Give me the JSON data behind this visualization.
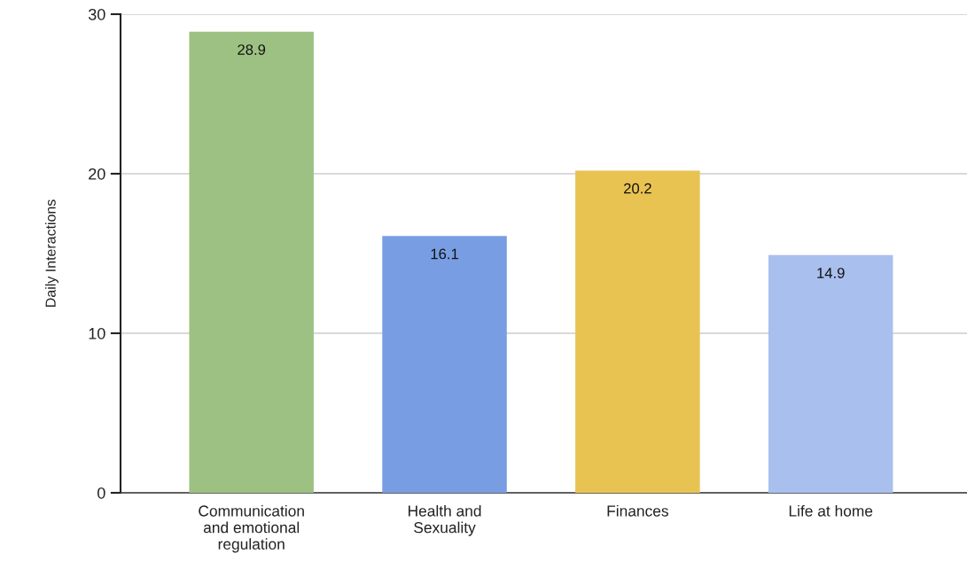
{
  "chart_data": {
    "type": "bar",
    "ylabel": "Daily Interactions",
    "categories": [
      "Communication\nand emotional\nregulation",
      "Health and\nSexuality",
      "Finances",
      "Life at home"
    ],
    "values": [
      28.9,
      16.1,
      20.2,
      14.9
    ],
    "colors": [
      "#9dc183",
      "#789de3",
      "#e8c352",
      "#a9bfee"
    ],
    "ylim": [
      0,
      30
    ],
    "yticks": [
      0,
      10,
      20,
      30
    ],
    "grid": "y",
    "data_labels": true,
    "legend": false
  }
}
